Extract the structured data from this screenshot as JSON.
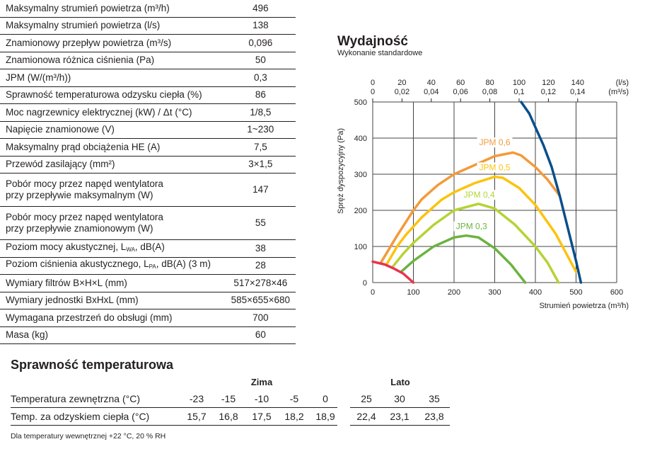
{
  "specs": [
    {
      "label": "Maksymalny strumień powietrza (m³/h)",
      "value": "496"
    },
    {
      "label": "Maksymalny strumień powietrza (l/s)",
      "value": "138"
    },
    {
      "label": "Znamionowy przepływ powietrza (m³/s)",
      "value": "0,096"
    },
    {
      "label": "Znamionowa różnica ciśnienia (Pa)",
      "value": "50"
    },
    {
      "label": "JPM (W/(m³/h))",
      "value": "0,3"
    },
    {
      "label": "Sprawność temperaturowa odzysku ciepła (%)",
      "value": "86"
    },
    {
      "label": "Moc nagrzewnicy elektrycznej (kW) / Δt (°C)",
      "value": "1/8,5"
    },
    {
      "label": "Napięcie znamionowe (V)",
      "value": "1~230"
    },
    {
      "label": "Maksymalny prąd obciążenia HE (A)",
      "value": "7,5"
    },
    {
      "label": "Przewód zasilający (mm²)",
      "value": "3×1,5"
    },
    {
      "label": "Pobór mocy przez napęd wentylatora",
      "label2": "przy przepływie maksymalnym (W)",
      "value": "147"
    },
    {
      "label": "Pobór mocy przez napęd wentylatora",
      "label2": "przy przepływie znamionowym (W)",
      "value": "55"
    },
    {
      "label": "Poziom mocy akustycznej, L",
      "sub": "WA",
      "after": ", dB(A)",
      "value": "38"
    },
    {
      "label": "Poziom ciśnienia akustycznego, L",
      "sub": "PA",
      "after": ", dB(A) (3 m)",
      "value": "28"
    },
    {
      "label": "Wymiary filtrów B×H×L (mm)",
      "value": "517×278×46"
    },
    {
      "label": "Wymiary jednostki BxHxL (mm)",
      "value": "585×655×680"
    },
    {
      "label": "Wymagana przestrzeń do obsługi (mm)",
      "value": "700"
    },
    {
      "label": "Masa (kg)",
      "value": "60"
    }
  ],
  "chart_data": {
    "type": "line",
    "title": "Wydajność",
    "subtitle": "Wykonanie standardowe",
    "xlabel": "Strumień powietrza (m³/h)",
    "ylabel": "Spręż dyspozycyjny (Pa)",
    "xlim": [
      0,
      600
    ],
    "ylim": [
      0,
      500
    ],
    "grid": true,
    "xticks": [
      0,
      100,
      200,
      300,
      400,
      500,
      600
    ],
    "yticks": [
      0,
      100,
      200,
      300,
      400,
      500
    ],
    "top_axis": {
      "ls_ticks": [
        "0",
        "20",
        "40",
        "60",
        "80",
        "100",
        "120",
        "140"
      ],
      "ls_unit": "(l/s)",
      "m3s_ticks": [
        "0",
        "0,02",
        "0,04",
        "0,06",
        "0,08",
        "0,1",
        "0,12",
        "0,14"
      ],
      "m3s_unit": "(m³/s)"
    },
    "series": [
      {
        "name": "JPM 0,6",
        "color": "#f39a3a",
        "label_at": [
          300,
          380
        ],
        "points": [
          [
            20,
            55
          ],
          [
            60,
            130
          ],
          [
            100,
            200
          ],
          [
            120,
            230
          ],
          [
            160,
            270
          ],
          [
            200,
            300
          ],
          [
            250,
            325
          ],
          [
            300,
            350
          ],
          [
            345,
            360
          ],
          [
            365,
            352
          ],
          [
            400,
            320
          ],
          [
            430,
            285
          ],
          [
            460,
            240
          ]
        ]
      },
      {
        "name": "JPM 0,5",
        "color": "#fcc30f",
        "label_at": [
          300,
          311
        ],
        "points": [
          [
            33,
            48
          ],
          [
            60,
            100
          ],
          [
            80,
            130
          ],
          [
            120,
            180
          ],
          [
            170,
            230
          ],
          [
            200,
            250
          ],
          [
            250,
            275
          ],
          [
            300,
            293
          ],
          [
            320,
            290
          ],
          [
            360,
            262
          ],
          [
            400,
            215
          ],
          [
            450,
            135
          ],
          [
            500,
            30
          ]
        ]
      },
      {
        "name": "JPM 0,4",
        "color": "#b5d334",
        "label_at": [
          262,
          235
        ],
        "points": [
          [
            48,
            42
          ],
          [
            75,
            80
          ],
          [
            100,
            110
          ],
          [
            150,
            160
          ],
          [
            200,
            200
          ],
          [
            260,
            218
          ],
          [
            300,
            205
          ],
          [
            350,
            160
          ],
          [
            400,
            100
          ],
          [
            430,
            55
          ],
          [
            457,
            0
          ]
        ]
      },
      {
        "name": "JPM 0,3",
        "color": "#6cb33f",
        "label_at": [
          243,
          148
        ],
        "points": [
          [
            70,
            30
          ],
          [
            100,
            60
          ],
          [
            150,
            100
          ],
          [
            200,
            125
          ],
          [
            230,
            130
          ],
          [
            260,
            125
          ],
          [
            300,
            95
          ],
          [
            340,
            50
          ],
          [
            375,
            0
          ]
        ]
      },
      {
        "name": "",
        "color": "#e8344e",
        "points": [
          [
            0,
            58
          ],
          [
            30,
            50
          ],
          [
            50,
            40
          ],
          [
            75,
            25
          ],
          [
            100,
            0
          ]
        ]
      },
      {
        "name": "",
        "color": "#0a4f8a",
        "points": [
          [
            365,
            500
          ],
          [
            385,
            468
          ],
          [
            400,
            430
          ],
          [
            420,
            380
          ],
          [
            440,
            320
          ],
          [
            460,
            240
          ],
          [
            480,
            150
          ],
          [
            500,
            60
          ],
          [
            512,
            0
          ]
        ]
      }
    ]
  },
  "efficiency": {
    "title": "Sprawność temperaturowa",
    "group_winter": "Zima",
    "group_summer": "Lato",
    "row1_label": "Temperatura zewnętrzna (°C)",
    "row1": [
      "-23",
      "-15",
      "-10",
      "-5",
      "0",
      "25",
      "30",
      "35"
    ],
    "row2_label": "Temp. za odzyskiem ciepła (°C)",
    "row2": [
      "15,7",
      "16,8",
      "17,5",
      "18,2",
      "18,9",
      "22,4",
      "23,1",
      "23,8"
    ],
    "note": "Dla temperatury wewnętrznej +22 °C, 20 % RH"
  }
}
